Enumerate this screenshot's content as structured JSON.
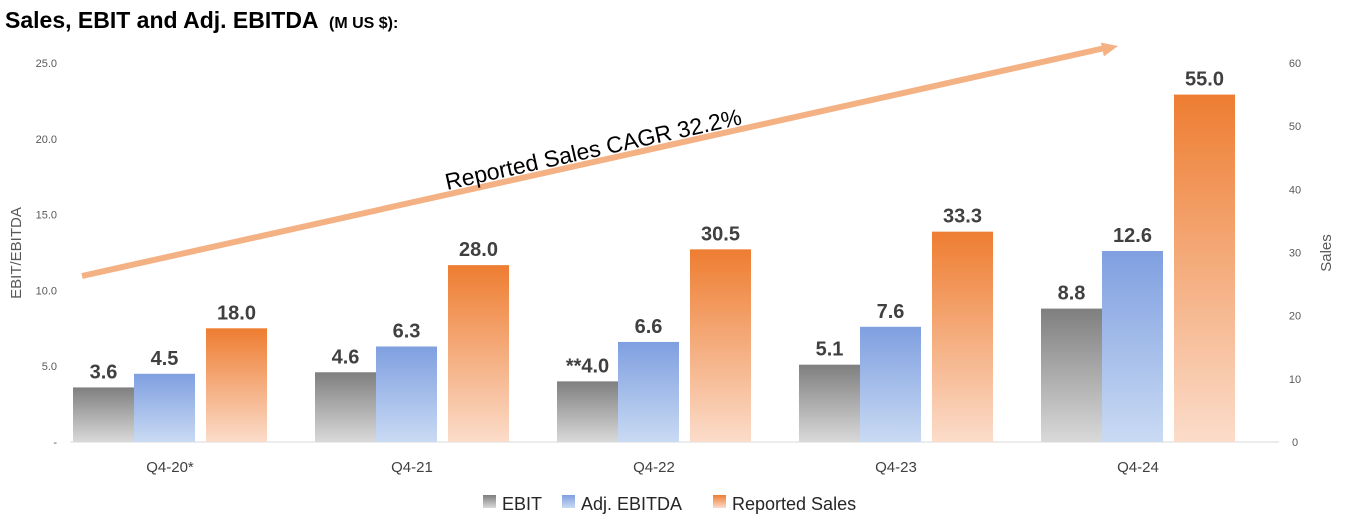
{
  "title": "Sales, EBIT and Adj. EBITDA",
  "title_unit": "(M US $):",
  "annotation": "Reported Sales CAGR 32.2%",
  "colors": {
    "ebit_top": "#7f7f7f",
    "ebit_bottom": "#d9d9d9",
    "ebitda_top": "#7f9fe0",
    "ebitda_bottom": "#c9daf3",
    "sales_top": "#ee7d31",
    "sales_bottom": "#fbdcca",
    "arrow": "#f4b183",
    "axis": "#d9d9d9"
  },
  "chart_data": {
    "type": "bar",
    "categories": [
      "Q4-20*",
      "Q4-21",
      "Q4-22",
      "Q4-23",
      "Q4-24"
    ],
    "series": [
      {
        "name": "EBIT",
        "axis": "left",
        "values": [
          3.6,
          4.6,
          4.0,
          5.1,
          8.8
        ],
        "labels": [
          "3.6",
          "4.6",
          "**4.0",
          "5.1",
          "8.8"
        ]
      },
      {
        "name": "Adj. EBITDA",
        "axis": "left",
        "values": [
          4.5,
          6.3,
          6.6,
          7.6,
          12.6
        ],
        "labels": [
          "4.5",
          "6.3",
          "6.6",
          "7.6",
          "12.6"
        ]
      },
      {
        "name": "Reported Sales",
        "axis": "right",
        "values": [
          18.0,
          28.0,
          30.5,
          33.3,
          55.0
        ],
        "labels": [
          "18.0",
          "28.0",
          "30.5",
          "33.3",
          "55.0"
        ]
      }
    ],
    "left_axis": {
      "label": "EBIT/EBITDA",
      "range": [
        0,
        25
      ],
      "ticks": [
        "-",
        "5.0",
        "10.0",
        "15.0",
        "20.0",
        "25.0"
      ]
    },
    "right_axis": {
      "label": "Sales",
      "range": [
        0,
        60
      ],
      "ticks": [
        "0",
        "10",
        "20",
        "30",
        "40",
        "50",
        "60"
      ]
    },
    "legend": {
      "position": "bottom",
      "entries": [
        "EBIT",
        "Adj. EBITDA",
        "Reported Sales"
      ]
    }
  }
}
